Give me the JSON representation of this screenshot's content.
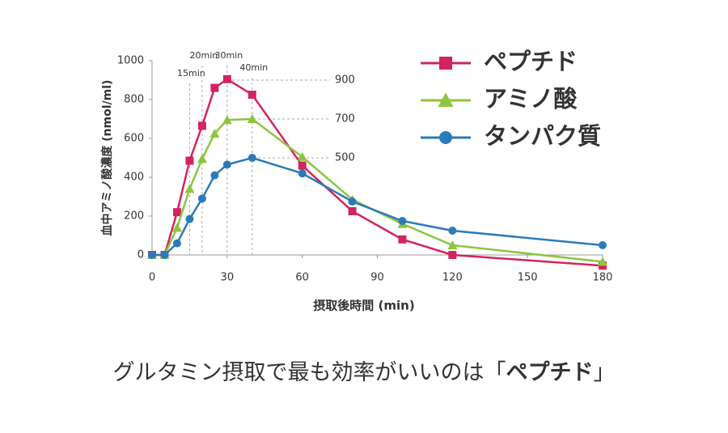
{
  "chart_data": {
    "type": "line",
    "ylabel": "血中アミノ酸濃度 (nmol/ml)",
    "xlabel": "摂取後時間 (min)",
    "x": [
      0,
      5,
      10,
      15,
      20,
      25,
      30,
      40,
      60,
      80,
      100,
      120,
      180
    ],
    "series": [
      {
        "name": "ペプチド",
        "color": "#d2245f",
        "marker": "square",
        "values": [
          0,
          0,
          220,
          485,
          665,
          860,
          905,
          825,
          460,
          225,
          80,
          0,
          -55
        ]
      },
      {
        "name": "アミノ酸",
        "color": "#8cc63e",
        "marker": "triangle",
        "values": [
          0,
          0,
          140,
          340,
          495,
          625,
          695,
          700,
          505,
          285,
          160,
          50,
          -35
        ]
      },
      {
        "name": "タンパク質",
        "color": "#2b7bb9",
        "marker": "circle",
        "values": [
          0,
          0,
          60,
          185,
          290,
          410,
          465,
          500,
          420,
          275,
          175,
          125,
          50
        ]
      }
    ],
    "xlim": [
      0,
      180
    ],
    "xticks": [
      0,
      30,
      60,
      90,
      120,
      150,
      180
    ],
    "ylim": [
      0,
      1000
    ],
    "yticks": [
      0,
      200,
      400,
      600,
      800,
      1000
    ],
    "grid": false,
    "legend": "upper right",
    "annotations": {
      "times": [
        {
          "value": 15,
          "label": "15min"
        },
        {
          "value": 20,
          "label": "20min"
        },
        {
          "value": 30,
          "label": "30min"
        },
        {
          "value": 40,
          "label": "40min"
        }
      ],
      "levels": [
        900,
        700,
        500
      ]
    }
  },
  "caption": {
    "before": "グルタミン摂取で最も効率がいいのは「",
    "emphasis": "ペプチド",
    "after": "」"
  }
}
